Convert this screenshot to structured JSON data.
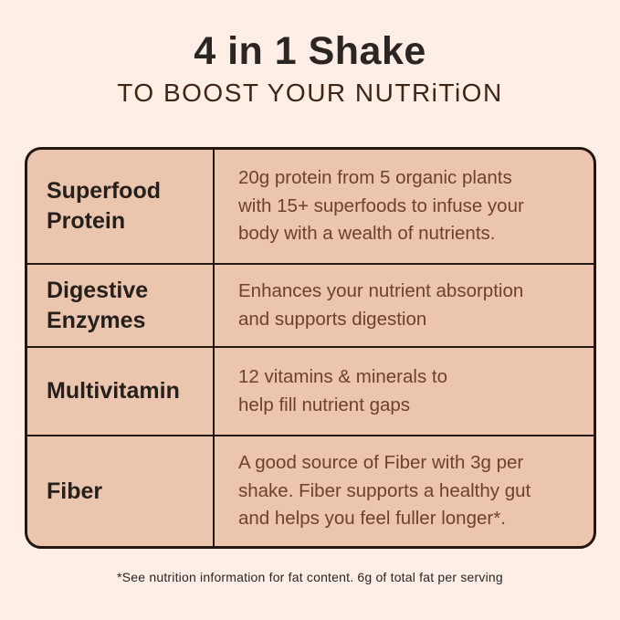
{
  "page": {
    "title": "4 in 1 Shake",
    "subtitle": "TO BOOST YOUR NUTRiTiON",
    "footnote": "*See nutrition information for fat content. 6g of total fat per serving"
  },
  "table": {
    "rows": [
      {
        "label": "Superfood\nProtein",
        "description": "20g protein from 5 organic plants\nwith 15+ superfoods to infuse your\nbody with a wealth of nutrients."
      },
      {
        "label": "Digestive\nEnzymes",
        "description": "Enhances your nutrient absorption\nand supports digestion"
      },
      {
        "label": "Multivitamin",
        "description": "12 vitamins & minerals to\nhelp fill nutrient gaps"
      },
      {
        "label": "Fiber",
        "description": "A good source of Fiber with 3g per\nshake. Fiber supports a healthy gut\nand helps you feel fuller longer*."
      }
    ]
  },
  "colors": {
    "page_background": "#FFEEE5",
    "table_background": "#EBC5AE",
    "border": "#241712",
    "title_text": "#2B2623",
    "subtitle_text": "#402517",
    "label_text": "#26201D",
    "description_text": "#70402E",
    "footnote_text": "#262626"
  }
}
